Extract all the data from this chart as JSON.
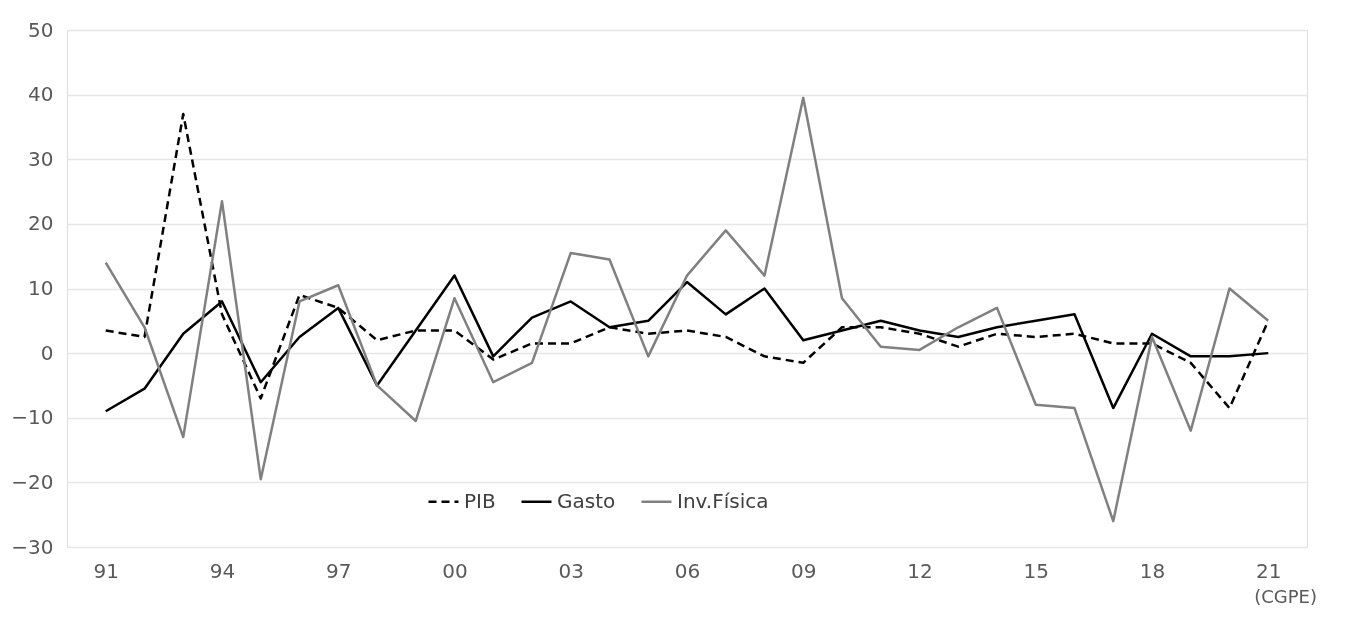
{
  "chart_data": {
    "type": "line",
    "categories": [
      "91",
      null,
      null,
      "94",
      null,
      null,
      "97",
      null,
      null,
      "00",
      null,
      null,
      "03",
      null,
      null,
      "06",
      null,
      null,
      "09",
      null,
      null,
      "12",
      null,
      null,
      "15",
      null,
      null,
      "18",
      null,
      null,
      "21"
    ],
    "series": [
      {
        "name": "PIB",
        "color": "#000000",
        "line_style": "dashed",
        "values": [
          3.5,
          2.5,
          37,
          6,
          -7,
          9,
          7,
          2,
          3.5,
          3.5,
          -1,
          1.5,
          1.5,
          4,
          3,
          3.5,
          2.5,
          -0.5,
          -1.5,
          4,
          4,
          3,
          1,
          3,
          2.5,
          3,
          1.5,
          1.5,
          -1.5,
          -8.5,
          5
        ]
      },
      {
        "name": "Gasto",
        "color": "#000000",
        "line_style": "solid",
        "values": [
          -9,
          -5.5,
          3,
          8,
          -4.5,
          2.5,
          7,
          -5,
          3.5,
          12,
          -0.5,
          5.5,
          8,
          4,
          5,
          11,
          6,
          10,
          2,
          3.5,
          5,
          3.5,
          2.5,
          4,
          5,
          6,
          -8.5,
          3,
          -0.5,
          -0.5,
          0
        ]
      },
      {
        "name": "Inv.Física",
        "color": "#808080",
        "line_style": "solid",
        "values": [
          14,
          4,
          -13,
          23.5,
          -19.5,
          8,
          10.5,
          -5,
          -10.5,
          8.5,
          -4.5,
          -1.5,
          15.5,
          14.5,
          -0.5,
          12,
          19,
          12,
          39.5,
          8.5,
          1,
          0.5,
          4,
          7,
          -8,
          -8.5,
          -26,
          2.5,
          -12,
          10,
          5
        ]
      }
    ],
    "ylim": [
      -30,
      50
    ],
    "yticks": [
      -30,
      -20,
      -10,
      0,
      10,
      20,
      30,
      40,
      50
    ],
    "grid": "y",
    "legend": "bottom",
    "annotations": [
      "(CGPE)"
    ]
  }
}
